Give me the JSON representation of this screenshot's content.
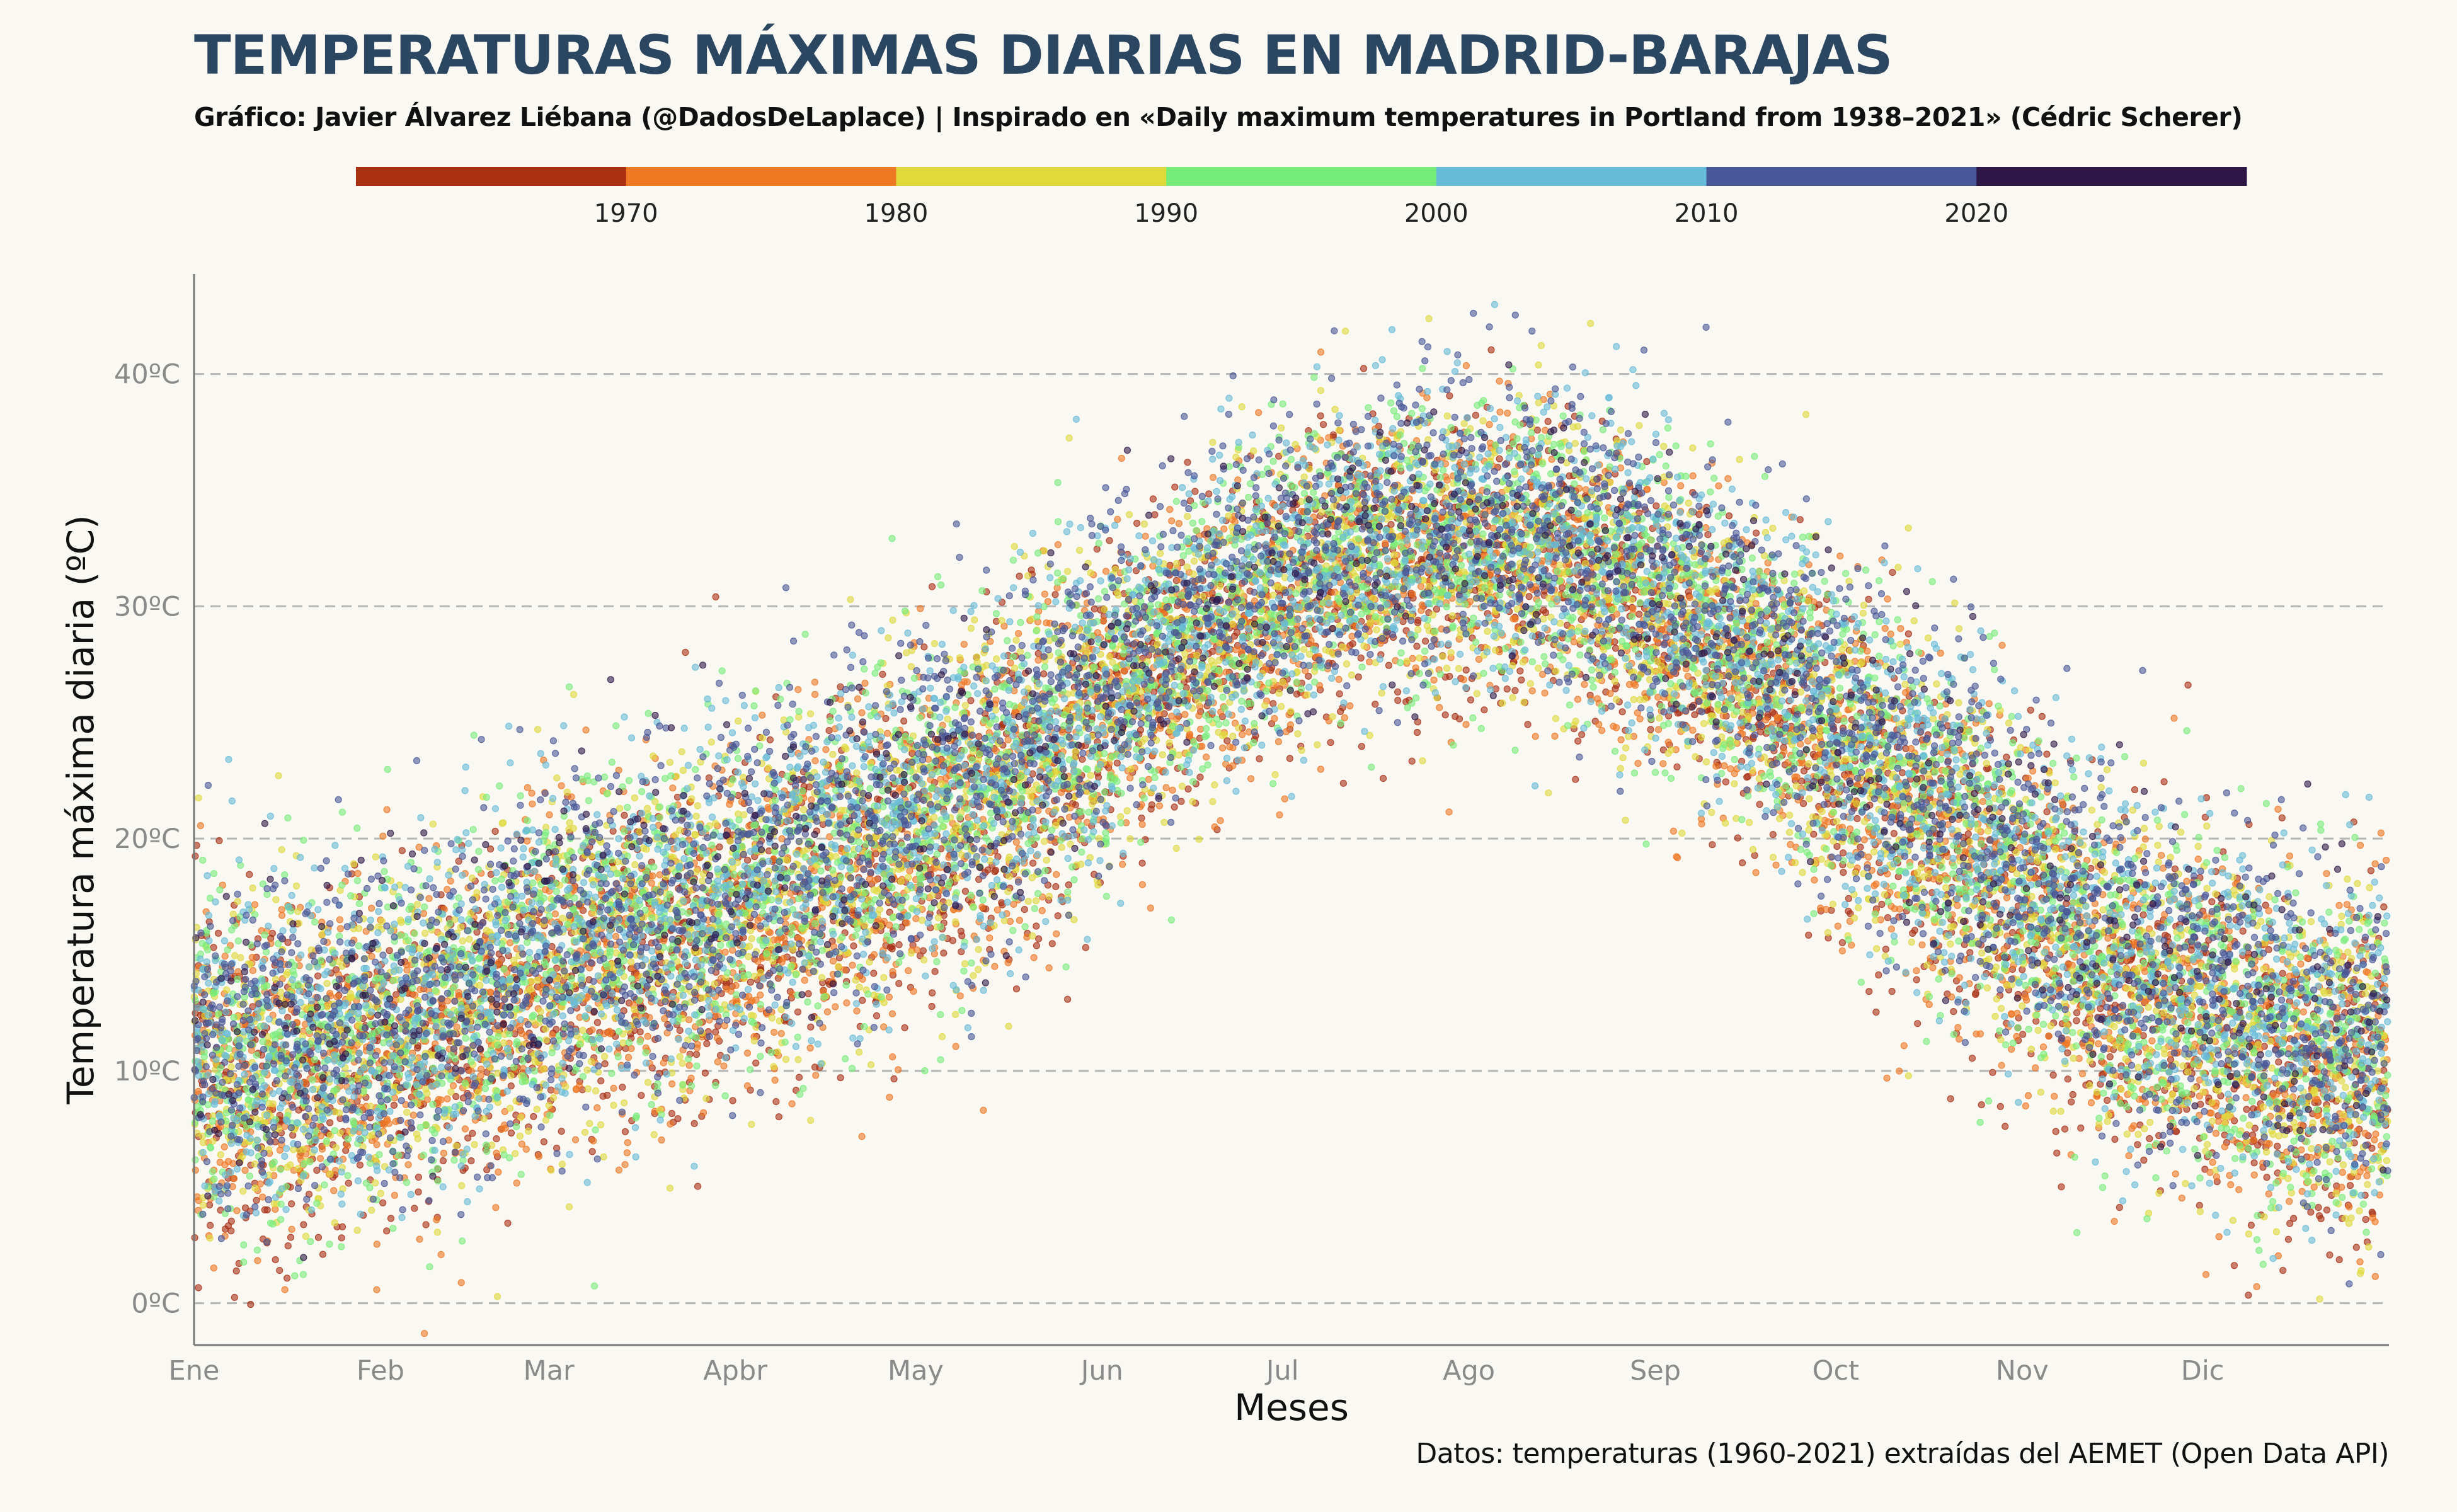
{
  "chart_data": {
    "type": "scatter",
    "title": "TEMPERATURAS MÁXIMAS DIARIAS EN MADRID-BARAJAS",
    "subtitle": "Gráfico: Javier Álvarez Liébana (@DadosDeLaplace) | Inspirado en «Daily maximum temperatures in Portland from 1938–2021» (Cédric Scherer)",
    "caption": "Datos: temperaturas (1960-2021) extraídas del AEMET (Open Data API)",
    "xlabel": "Meses",
    "ylabel": "Temperatura máxima diaria (ºC)",
    "x_ticks": [
      "Ene",
      "Feb",
      "Mar",
      "Apbr",
      "May",
      "Jun",
      "Jul",
      "Ago",
      "Sep",
      "Oct",
      "Nov",
      "Dic"
    ],
    "y_ticks": [
      "0ºC",
      "10ºC",
      "20ºC",
      "30ºC",
      "40ºC"
    ],
    "y_tick_values": [
      0,
      10,
      20,
      30,
      40
    ],
    "ylim": [
      -1.8,
      44.3
    ],
    "xlim_days": [
      1,
      366
    ],
    "years": [
      1960,
      2021
    ],
    "grid": "horizontal-dashed",
    "legend": {
      "position": "top",
      "labels": [
        "1970",
        "1980",
        "1990",
        "2000",
        "2010",
        "2020"
      ],
      "colors": [
        "#a92e12",
        "#ee7722",
        "#dfd93a",
        "#76ed79",
        "#65bbd8",
        "#485797",
        "#2f1848"
      ]
    },
    "seasonal_profile": {
      "month_midpoints_day": [
        16,
        45,
        75,
        105,
        136,
        166,
        197,
        228,
        258,
        289,
        319,
        350
      ],
      "mean_max_temp": [
        10.2,
        12.6,
        16.2,
        18.6,
        22.8,
        28.6,
        32.9,
        32.6,
        27.9,
        21.2,
        14.6,
        10.8
      ]
    }
  }
}
